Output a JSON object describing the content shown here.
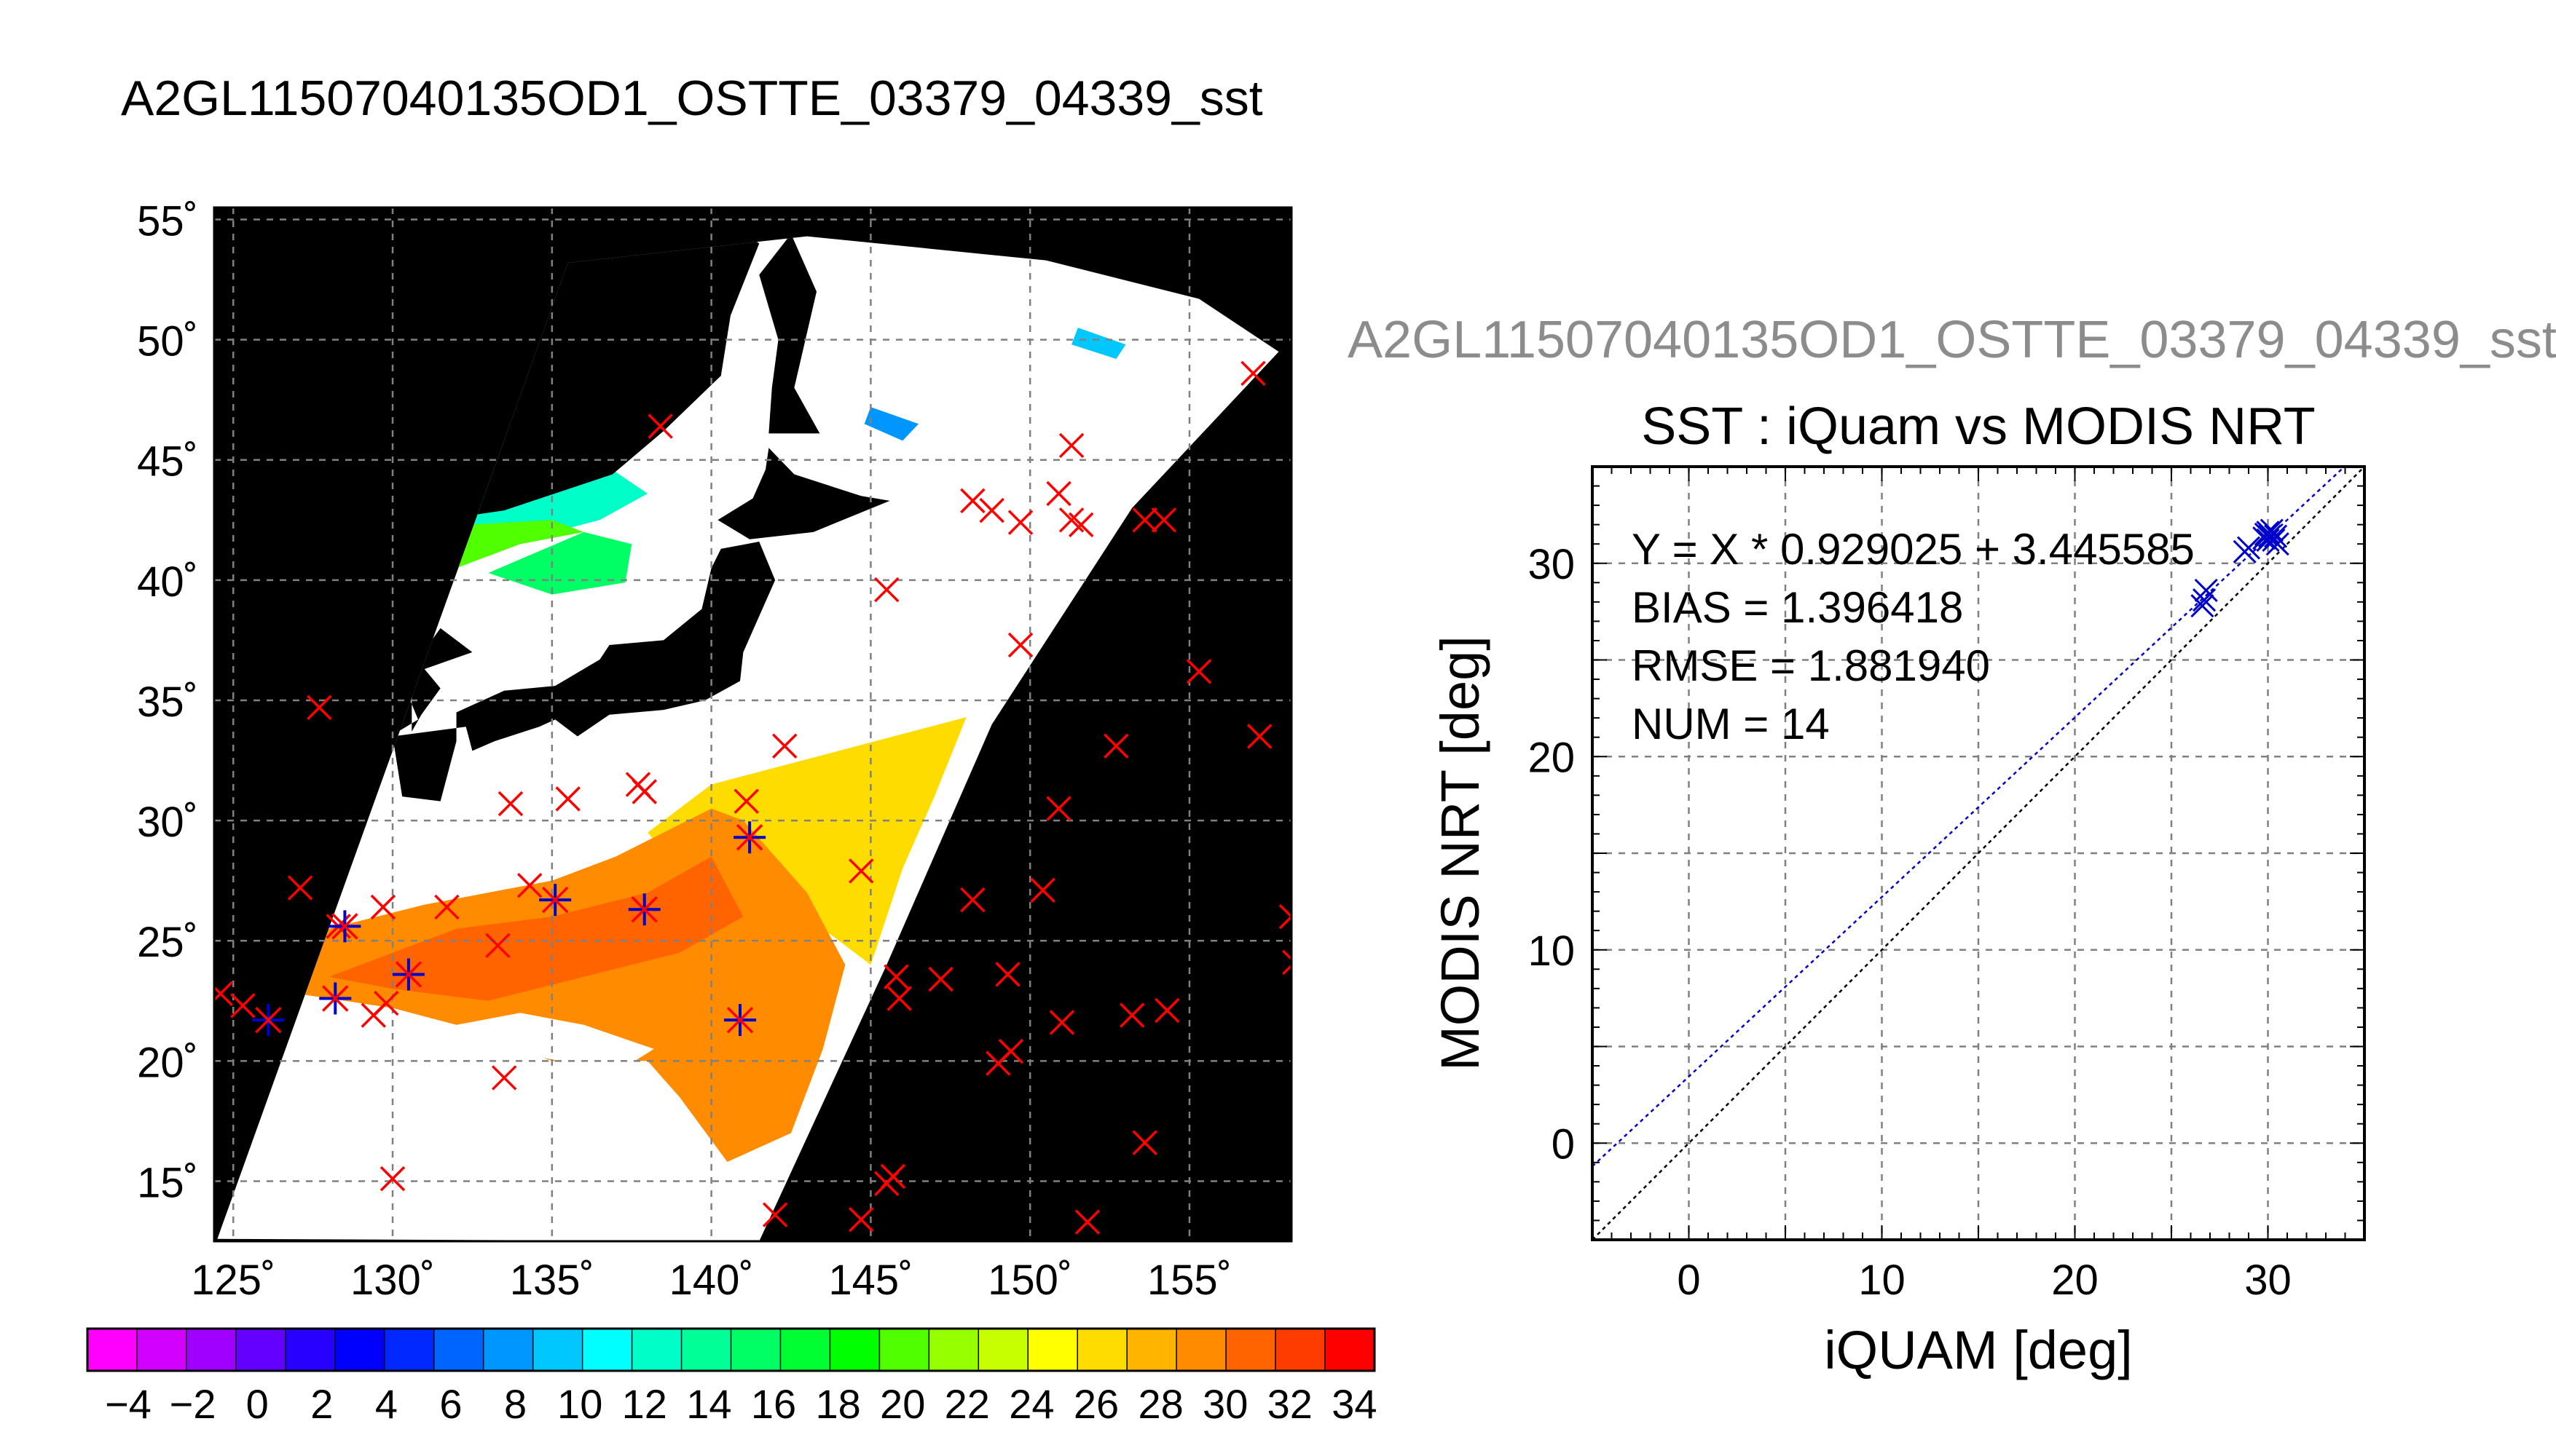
{
  "main_title": "A2GL11507040135OD1_OSTTE_03379_04339_sst",
  "scatter_file_title": "A2GL11507040135OD1_OSTTE_03379_04339_sst",
  "colors": {
    "land": "#000000",
    "cloud": "#ffffff",
    "marker_insitu": "#ff0000",
    "marker_matchup": "#0000cc",
    "fit_line": "#0000cc",
    "identity_line": "#000000",
    "grid": "#808080"
  },
  "chart_data": [
    {
      "type": "map",
      "projection": "lat-lon",
      "lat_labels": [
        "55˚",
        "50˚",
        "45˚",
        "40˚",
        "35˚",
        "30˚",
        "25˚",
        "20˚",
        "15˚"
      ],
      "lon_labels": [
        "125˚",
        "130˚",
        "135˚",
        "140˚",
        "145˚",
        "150˚",
        "155˚"
      ],
      "lat_range": [
        12.5,
        55.5
      ],
      "lon_range": [
        124.4,
        158.2
      ],
      "grid": true,
      "insitu_points": [
        {
          "lon": 157,
          "lat": 48.6
        },
        {
          "lon": 138.4,
          "lat": 46.4
        },
        {
          "lon": 151.3,
          "lat": 45.6
        },
        {
          "lon": 148.2,
          "lat": 43.3
        },
        {
          "lon": 148.8,
          "lat": 42.9
        },
        {
          "lon": 149.7,
          "lat": 42.4
        },
        {
          "lon": 150.9,
          "lat": 43.6
        },
        {
          "lon": 151.3,
          "lat": 42.5
        },
        {
          "lon": 151.6,
          "lat": 42.3
        },
        {
          "lon": 153.6,
          "lat": 42.5
        },
        {
          "lon": 154.2,
          "lat": 42.5
        },
        {
          "lon": 145.5,
          "lat": 39.6
        },
        {
          "lon": 149.7,
          "lat": 37.3
        },
        {
          "lon": 155.3,
          "lat": 36.2
        },
        {
          "lon": 127.7,
          "lat": 34.7
        },
        {
          "lon": 157.2,
          "lat": 33.5
        },
        {
          "lon": 152.7,
          "lat": 33.1
        },
        {
          "lon": 142.3,
          "lat": 33.1
        },
        {
          "lon": 133.7,
          "lat": 30.7
        },
        {
          "lon": 135.5,
          "lat": 30.9
        },
        {
          "lon": 137.7,
          "lat": 31.5
        },
        {
          "lon": 137.9,
          "lat": 31.2
        },
        {
          "lon": 141.1,
          "lat": 30.8
        },
        {
          "lon": 150.9,
          "lat": 30.5
        },
        {
          "lon": 144.7,
          "lat": 27.9
        },
        {
          "lon": 127.1,
          "lat": 27.2
        },
        {
          "lon": 129.7,
          "lat": 26.4
        },
        {
          "lon": 131.7,
          "lat": 26.4
        },
        {
          "lon": 134.3,
          "lat": 27.3
        },
        {
          "lon": 148.2,
          "lat": 26.7
        },
        {
          "lon": 150.4,
          "lat": 27.1
        },
        {
          "lon": 158.2,
          "lat": 26
        },
        {
          "lon": 128.3,
          "lat": 25.6
        },
        {
          "lon": 133.3,
          "lat": 24.8
        },
        {
          "lon": 145.8,
          "lat": 23.5
        },
        {
          "lon": 147.2,
          "lat": 23.4
        },
        {
          "lon": 149.3,
          "lat": 23.6
        },
        {
          "lon": 145.9,
          "lat": 22.6
        },
        {
          "lon": 158.3,
          "lat": 24.1
        },
        {
          "lon": 124.6,
          "lat": 22.8
        },
        {
          "lon": 125.3,
          "lat": 22.3
        },
        {
          "lon": 129.4,
          "lat": 21.9
        },
        {
          "lon": 129.8,
          "lat": 22.4
        },
        {
          "lon": 151,
          "lat": 21.6
        },
        {
          "lon": 153.2,
          "lat": 21.9
        },
        {
          "lon": 154.3,
          "lat": 22.1
        },
        {
          "lon": 149.4,
          "lat": 20.4
        },
        {
          "lon": 149,
          "lat": 19.9
        },
        {
          "lon": 133.5,
          "lat": 19.3
        },
        {
          "lon": 153.6,
          "lat": 16.6
        },
        {
          "lon": 130,
          "lat": 15.1
        },
        {
          "lon": 145.7,
          "lat": 15.2
        },
        {
          "lon": 145.5,
          "lat": 14.9
        },
        {
          "lon": 142,
          "lat": 13.6
        },
        {
          "lon": 144.7,
          "lat": 13.4
        },
        {
          "lon": 151.8,
          "lat": 13.3
        }
      ],
      "matchup_points": [
        {
          "lon": 141.2,
          "lat": 29.3
        },
        {
          "lon": 135.1,
          "lat": 26.7
        },
        {
          "lon": 137.9,
          "lat": 26.3
        },
        {
          "lon": 128.5,
          "lat": 25.6
        },
        {
          "lon": 130.5,
          "lat": 23.6
        },
        {
          "lon": 128.2,
          "lat": 22.6
        },
        {
          "lon": 126.1,
          "lat": 21.7
        },
        {
          "lon": 140.9,
          "lat": 21.7
        }
      ]
    },
    {
      "type": "colorbar",
      "tick_labels": [
        "−4",
        "−2",
        "0",
        "2",
        "4",
        "6",
        "8",
        "10",
        "12",
        "14",
        "16",
        "18",
        "20",
        "22",
        "24",
        "26",
        "28",
        "30",
        "32",
        "34"
      ],
      "min": -5,
      "max": 35,
      "step": 2,
      "colors": [
        "#ff00ff",
        "#d200ff",
        "#a000ff",
        "#6400ff",
        "#2800ff",
        "#0000ff",
        "#0028ff",
        "#0064ff",
        "#0096ff",
        "#00c8ff",
        "#00ffff",
        "#00ffc8",
        "#00ff96",
        "#00ff64",
        "#00ff32",
        "#00ff00",
        "#50ff00",
        "#96ff00",
        "#c8ff00",
        "#ffff00",
        "#ffdc00",
        "#ffb400",
        "#ff8c00",
        "#ff6400",
        "#ff3c00",
        "#ff0000"
      ]
    },
    {
      "type": "scatter",
      "title": "SST : iQuam vs MODIS NRT",
      "xlabel": "iQUAM [deg]",
      "ylabel": "MODIS NRT [deg]",
      "xlim": [
        -5,
        35
      ],
      "ylim": [
        -5,
        35
      ],
      "x_ticks": [
        0,
        10,
        20,
        30
      ],
      "y_ticks": [
        0,
        10,
        20,
        30
      ],
      "grid_step": 5,
      "grid": true,
      "annotations": [
        "Y = X * 0.929025 + 3.445585",
        "BIAS = 1.396418",
        "RMSE = 1.881940",
        "NUM = 14"
      ],
      "fit": {
        "slope": 0.929025,
        "intercept": 3.445585
      },
      "points": [
        {
          "x": 26.6,
          "y": 27.8
        },
        {
          "x": 26.7,
          "y": 28.1
        },
        {
          "x": 26.8,
          "y": 28.6
        },
        {
          "x": 28.8,
          "y": 30.6
        },
        {
          "x": 29.0,
          "y": 30.8
        },
        {
          "x": 29.8,
          "y": 31.3
        },
        {
          "x": 29.9,
          "y": 31.5
        },
        {
          "x": 30.0,
          "y": 31.6
        },
        {
          "x": 30.1,
          "y": 31.4
        },
        {
          "x": 30.2,
          "y": 31.7
        },
        {
          "x": 30.3,
          "y": 31.2
        },
        {
          "x": 30.4,
          "y": 31.4
        },
        {
          "x": 30.5,
          "y": 31.0
        },
        {
          "x": 30.0,
          "y": 31.2
        }
      ]
    }
  ]
}
